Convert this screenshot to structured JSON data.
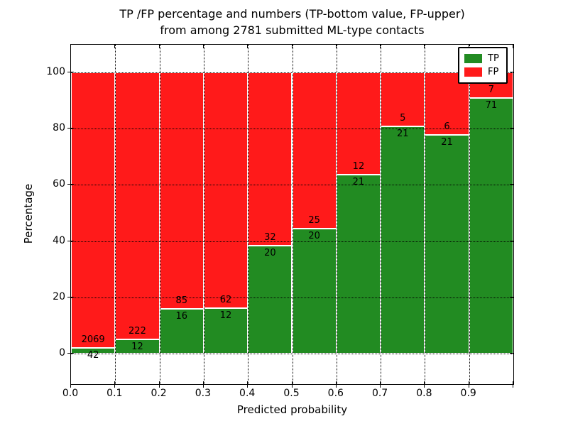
{
  "title": {
    "line1": "TP /FP percentage and numbers (TP-bottom value, FP-upper)",
    "line2": "from among 2781 submitted ML-type contacts"
  },
  "axes": {
    "xlabel": "Predicted probability",
    "ylabel": "Percentage",
    "ytick_labels": [
      "0",
      "20",
      "40",
      "60",
      "80",
      "100"
    ],
    "ytick_values": [
      0,
      20,
      40,
      60,
      80,
      100
    ],
    "xtick_labels": [
      "0.0",
      "0.1",
      "0.2",
      "0.3",
      "0.4",
      "0.5",
      "0.6",
      "0.7",
      "0.8",
      "0.9"
    ],
    "xtick_values": [
      0,
      0.1,
      0.2,
      0.3,
      0.4,
      0.5,
      0.6,
      0.7,
      0.8,
      0.9
    ]
  },
  "legend": {
    "items": [
      {
        "label": "TP",
        "color": "#228B22"
      },
      {
        "label": "FP",
        "color": "#FF1A1A"
      }
    ]
  },
  "chart_data": {
    "type": "bar",
    "stacked": true,
    "normalized": "each bar scaled to 100%",
    "title": "TP /FP percentage and numbers (TP-bottom value, FP-upper) from among 2781 submitted ML-type contacts",
    "xlabel": "Predicted probability",
    "ylabel": "Percentage",
    "categories": [
      "0.0-0.1",
      "0.1-0.2",
      "0.2-0.3",
      "0.3-0.4",
      "0.4-0.5",
      "0.5-0.6",
      "0.6-0.7",
      "0.7-0.8",
      "0.8-0.9",
      "0.9-1.0"
    ],
    "series": [
      {
        "name": "TP",
        "color": "#228B22",
        "counts": [
          42,
          12,
          16,
          12,
          20,
          20,
          21,
          21,
          21,
          71
        ]
      },
      {
        "name": "FP",
        "color": "#FF1A1A",
        "counts": [
          2069,
          222,
          85,
          62,
          32,
          25,
          12,
          5,
          6,
          7
        ]
      }
    ],
    "tp_percent": [
      2.0,
      5.1,
      15.8,
      16.2,
      38.5,
      44.4,
      63.6,
      80.8,
      77.8,
      91.0
    ],
    "total_contacts": 2781,
    "xlim": [
      0,
      1
    ],
    "ylim": [
      -11,
      110
    ],
    "grid": true,
    "legend_position": "upper right"
  }
}
